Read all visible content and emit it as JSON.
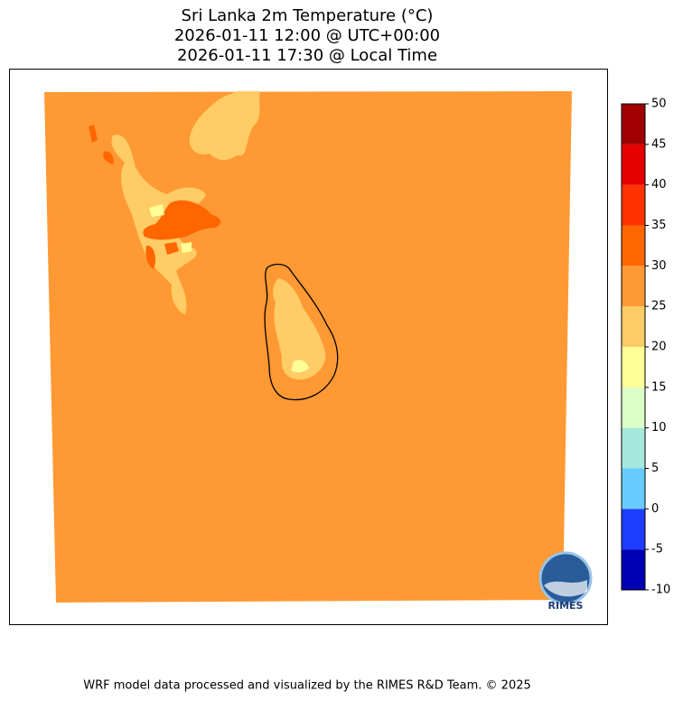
{
  "title": [
    "Sri Lanka 2m Temperature (°C)",
    "2026-01-11 12:00 @ UTC+00:00",
    "2026-01-11 17:30 @ Local Time"
  ],
  "colorbar": {
    "levels": [
      -10,
      -5,
      0,
      5,
      10,
      15,
      20,
      25,
      30,
      35,
      40,
      45,
      50
    ],
    "colors": [
      "#0000b4",
      "#1e3cff",
      "#66ccff",
      "#a6e8dc",
      "#dcffc8",
      "#ffff96",
      "#ffcc66",
      "#ff9933",
      "#ff6600",
      "#ff3300",
      "#e60000",
      "#a00000"
    ]
  },
  "logo": "RIMES",
  "footer": "WRF model data processed and visualized by the RIMES R&D Team. © 2025"
}
